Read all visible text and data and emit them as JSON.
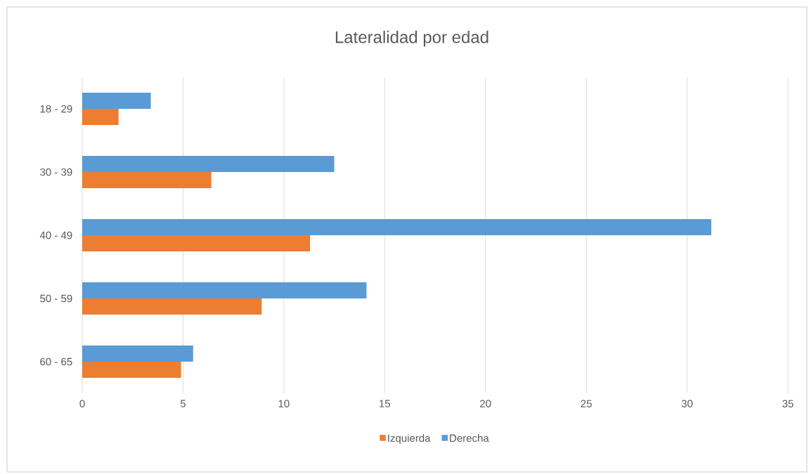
{
  "chart_data": {
    "type": "bar",
    "orientation": "horizontal",
    "title": "Lateralidad por edad",
    "categories": [
      "18 - 29",
      "30 - 39",
      "40 - 49",
      "50 - 59",
      "60 - 65"
    ],
    "series": [
      {
        "name": "Izquierda",
        "color": "#ed7d31",
        "values": [
          1.8,
          6.4,
          11.3,
          8.9,
          4.9
        ]
      },
      {
        "name": "Derecha",
        "color": "#5b9bd5",
        "values": [
          3.4,
          12.5,
          31.2,
          14.1,
          5.5
        ]
      }
    ],
    "xlim": [
      0,
      35
    ],
    "xticks": [
      0,
      5,
      10,
      15,
      20,
      25,
      30,
      35
    ],
    "grid": "x",
    "legend": "bottom"
  }
}
